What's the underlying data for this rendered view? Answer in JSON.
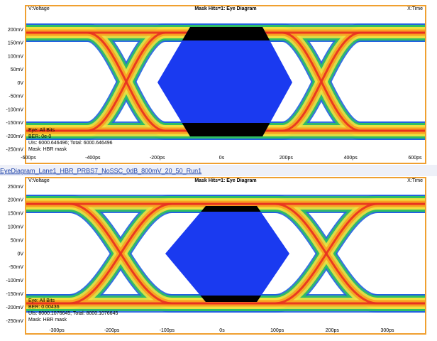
{
  "file_label": "EyeDiagram_Lane1_HBR_PRBS7_NoSSC_0dB_800mV_20_50_Run1",
  "panels": [
    {
      "header_left": "V:Voltage",
      "title": "Mask Hits=1: Eye Diagram",
      "header_right": "X:Time",
      "yticks": [
        "200mV",
        "150mV",
        "100mV",
        "50mV",
        "0V",
        "-50mV",
        "-100mV",
        "-150mV",
        "-200mV",
        "-250mV"
      ],
      "xticks": [
        "-600ps",
        "-400ps",
        "-200ps",
        "0s",
        "200ps",
        "400ps",
        "600ps"
      ],
      "legend": [
        "Eye: All Bits",
        "BER: 0e-0",
        "UIs: 6000.646496; Total: 6000.646496",
        "Mask: HBR mask"
      ]
    },
    {
      "header_left": "V:Voltage",
      "title": "Mask Hits=1: Eye Diagram",
      "header_right": "X:Time",
      "yticks": [
        "250mV",
        "200mV",
        "150mV",
        "100mV",
        "50mV",
        "0V",
        "-50mV",
        "-100mV",
        "-150mV",
        "-200mV",
        "-250mV"
      ],
      "xticks": [
        "-300ps",
        "-200ps",
        "-100ps",
        "0s",
        "100ps",
        "200ps",
        "300ps"
      ],
      "legend": [
        "Eye: All Bits",
        "BER: 0.00436",
        "UIs: 8000.1076645; Total: 8000.1076645",
        "Mask: HBR mask"
      ]
    }
  ]
}
